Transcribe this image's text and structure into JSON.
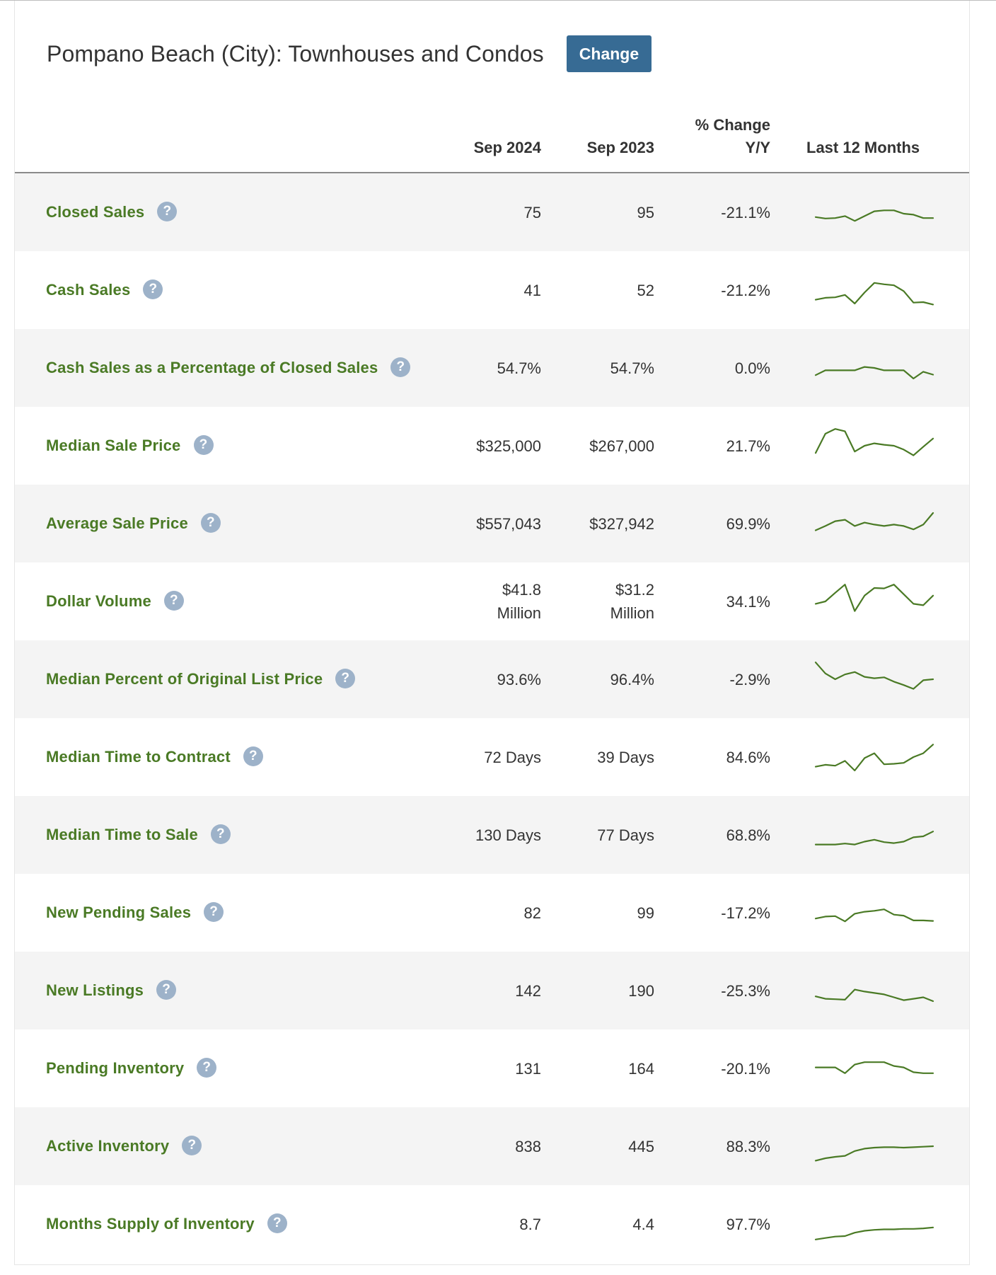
{
  "title": "Pompano Beach (City): Townhouses and Condos",
  "change_button": "Change",
  "help_glyph": "?",
  "colors": {
    "metric_label": "#4a7a25",
    "sparkline": "#4a7a25",
    "button": "#376b94",
    "help_icon": "#9db2c9",
    "row_shade": "#f4f4f4"
  },
  "columns": {
    "current": "Sep 2024",
    "previous": "Sep 2023",
    "change_line1": "% Change",
    "change_line2": "Y/Y",
    "trend": "Last 12 Months"
  },
  "rows": [
    {
      "label": "Closed Sales",
      "current": "75",
      "previous": "95",
      "change": "-21.1%",
      "trend": [
        0.4,
        0.37,
        0.38,
        0.42,
        0.32,
        0.42,
        0.52,
        0.54,
        0.54,
        0.47,
        0.45,
        0.38,
        0.38
      ]
    },
    {
      "label": "Cash Sales",
      "current": "41",
      "previous": "52",
      "change": "-21.2%",
      "trend": [
        0.3,
        0.34,
        0.35,
        0.4,
        0.22,
        0.45,
        0.65,
        0.62,
        0.6,
        0.48,
        0.24,
        0.25,
        0.2
      ]
    },
    {
      "label": "Cash Sales as a Percentage of Closed Sales",
      "current": "54.7%",
      "previous": "54.7%",
      "change": "0.0%",
      "trend": [
        0.35,
        0.45,
        0.45,
        0.45,
        0.45,
        0.52,
        0.5,
        0.45,
        0.45,
        0.45,
        0.28,
        0.42,
        0.36
      ]
    },
    {
      "label": "Median Sale Price",
      "current": "$325,000",
      "previous": "$267,000",
      "change": "21.7%",
      "trend": [
        0.35,
        0.75,
        0.85,
        0.8,
        0.38,
        0.5,
        0.55,
        0.52,
        0.5,
        0.42,
        0.3,
        0.48,
        0.65
      ]
    },
    {
      "label": "Average Sale Price",
      "current": "$557,043",
      "previous": "$327,942",
      "change": "69.9%",
      "trend": [
        0.36,
        0.45,
        0.55,
        0.58,
        0.45,
        0.52,
        0.48,
        0.45,
        0.48,
        0.45,
        0.38,
        0.48,
        0.72
      ]
    },
    {
      "label": "Dollar Volume",
      "current": "$41.8 Million",
      "previous": "$31.2 Million",
      "change": "34.1%",
      "trend": [
        0.45,
        0.5,
        0.68,
        0.85,
        0.3,
        0.62,
        0.78,
        0.77,
        0.85,
        0.65,
        0.45,
        0.42,
        0.62
      ]
    },
    {
      "label": "Median Percent of Original List Price",
      "current": "93.6%",
      "previous": "96.4%",
      "change": "-2.9%",
      "trend": [
        0.85,
        0.62,
        0.5,
        0.6,
        0.65,
        0.55,
        0.52,
        0.54,
        0.45,
        0.38,
        0.3,
        0.48,
        0.5
      ]
    },
    {
      "label": "Median Time to Contract",
      "current": "72 Days",
      "previous": "39 Days",
      "change": "84.6%",
      "trend": [
        0.3,
        0.34,
        0.32,
        0.42,
        0.22,
        0.48,
        0.58,
        0.35,
        0.36,
        0.38,
        0.5,
        0.58,
        0.76
      ]
    },
    {
      "label": "Median Time to Sale",
      "current": "130 Days",
      "previous": "77 Days",
      "change": "68.8%",
      "trend": [
        0.3,
        0.3,
        0.3,
        0.32,
        0.3,
        0.36,
        0.4,
        0.35,
        0.33,
        0.36,
        0.45,
        0.47,
        0.57
      ]
    },
    {
      "label": "New Pending Sales",
      "current": "82",
      "previous": "99",
      "change": "-17.2%",
      "trend": [
        0.38,
        0.42,
        0.43,
        0.32,
        0.48,
        0.52,
        0.54,
        0.57,
        0.46,
        0.44,
        0.34,
        0.34,
        0.33
      ]
    },
    {
      "label": "New Listings",
      "current": "142",
      "previous": "190",
      "change": "-25.3%",
      "trend": [
        0.38,
        0.33,
        0.32,
        0.31,
        0.52,
        0.48,
        0.45,
        0.42,
        0.36,
        0.3,
        0.33,
        0.36,
        0.28
      ]
    },
    {
      "label": "Pending Inventory",
      "current": "131",
      "previous": "164",
      "change": "-20.1%",
      "trend": [
        0.52,
        0.52,
        0.52,
        0.4,
        0.58,
        0.63,
        0.63,
        0.63,
        0.55,
        0.52,
        0.42,
        0.4,
        0.4
      ]
    },
    {
      "label": "Active Inventory",
      "current": "838",
      "previous": "445",
      "change": "88.3%",
      "trend": [
        0.2,
        0.25,
        0.28,
        0.3,
        0.4,
        0.45,
        0.47,
        0.48,
        0.48,
        0.47,
        0.48,
        0.49,
        0.5
      ]
    },
    {
      "label": "Months Supply of Inventory",
      "current": "8.7",
      "previous": "4.4",
      "change": "97.7%",
      "trend": [
        0.18,
        0.21,
        0.24,
        0.25,
        0.32,
        0.36,
        0.38,
        0.39,
        0.39,
        0.4,
        0.4,
        0.41,
        0.43
      ]
    }
  ]
}
